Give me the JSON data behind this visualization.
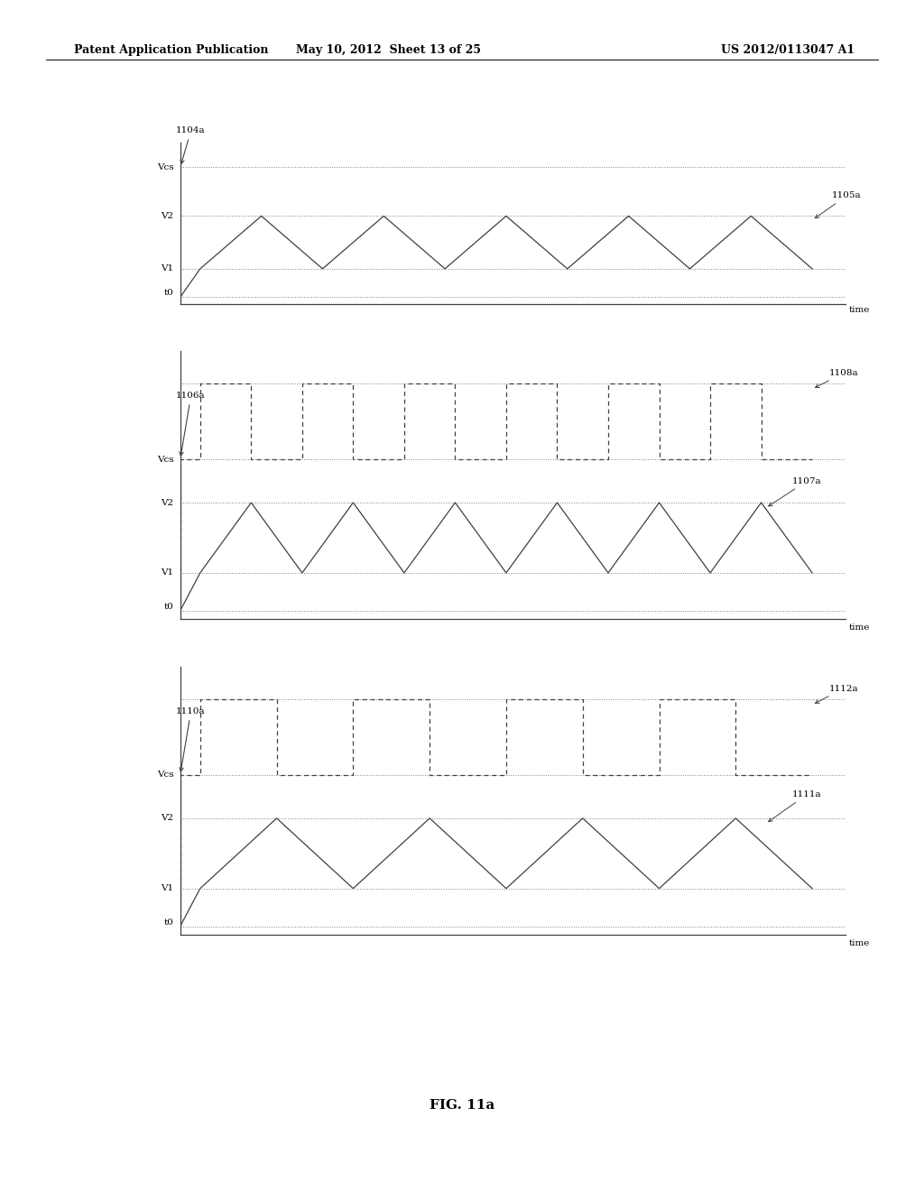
{
  "bg_color": "#ffffff",
  "header_left": "Patent Application Publication",
  "header_mid": "May 10, 2012  Sheet 13 of 25",
  "header_right": "US 2012/0113047 A1",
  "fig_label": "FIG. 11a",
  "line_color": "#404040",
  "dashed_color": "#808080",
  "panel1": {
    "label_top": "1104a",
    "label_wave": "1105a",
    "tri_periods": 5,
    "vcs": 1.6,
    "v2": 1.0,
    "v1": 0.35,
    "v0": 0.0
  },
  "panel2": {
    "label_top": "1106a",
    "label_sq": "1108a",
    "label_tri": "1107a",
    "sq_periods": 6,
    "tri_periods": 6,
    "sq_hi": 2.1,
    "vcs": 1.4,
    "v2": 1.0,
    "v1": 0.35,
    "v0": 0.0
  },
  "panel3": {
    "label_top": "1110a",
    "label_sq": "1112a",
    "label_tri": "1111a",
    "sq_periods": 4,
    "tri_periods": 4,
    "sq_hi": 2.1,
    "vcs": 1.4,
    "v2": 1.0,
    "v1": 0.35,
    "v0": 0.0
  }
}
